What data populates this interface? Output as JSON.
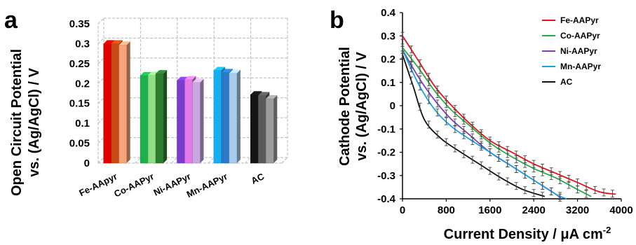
{
  "panels": {
    "a_letter": "a",
    "b_letter": "b"
  },
  "colors": {
    "Fe": [
      "#e00000",
      "#c84a14",
      "#f6a57a"
    ],
    "Co": [
      "#1cb14b",
      "#8fe084",
      "#2e7d2e"
    ],
    "Ni": [
      "#7a3ccf",
      "#e37ae8",
      "#c9a8e2"
    ],
    "Mn": [
      "#16aef0",
      "#2a78c8",
      "#a8ccec"
    ],
    "AC": [
      "#141414",
      "#5a5a5a",
      "#9c9c9c"
    ],
    "series_lines": [
      "#e8101a",
      "#2aa84a",
      "#7b3fb0",
      "#1ca0e0",
      "#111111"
    ]
  },
  "chart_data": [
    {
      "type": "bar",
      "panel": "a",
      "title": "",
      "ylabel_line1": "Open Circuit Potential",
      "ylabel_line2": "vs. (Ag/AgCl) / V",
      "xlabel": "",
      "ylim": [
        0,
        0.35
      ],
      "yticks": [
        "0",
        "0.05",
        "0.1",
        "0.15",
        "0.2",
        "0.25",
        "0.3",
        "0.35"
      ],
      "ytick_values": [
        0,
        0.05,
        0.1,
        0.15,
        0.2,
        0.25,
        0.3,
        0.35
      ],
      "categories": [
        "Fe-AApyr",
        "Co-AAPyr",
        "Ni-AAPyr",
        "Mn-AAPyr",
        "AC"
      ],
      "color_keys": [
        "Fe",
        "Co",
        "Ni",
        "Mn",
        "AC"
      ],
      "values": [
        [
          0.3,
          0.3,
          0.297
        ],
        [
          0.22,
          0.221,
          0.225
        ],
        [
          0.208,
          0.21,
          0.203
        ],
        [
          0.233,
          0.228,
          0.226
        ],
        [
          0.172,
          0.17,
          0.162
        ]
      ],
      "grid": true
    },
    {
      "type": "line",
      "panel": "b",
      "title": "",
      "ylabel_line1": "Cathode Potential",
      "ylabel_line2": "vs. (Ag/AgCl) / V",
      "xlabel": "Current Density / μA cm",
      "xlabel_sup": "-2",
      "xlim": [
        0,
        4000
      ],
      "ylim": [
        -0.4,
        0.4
      ],
      "xticks": [
        "0",
        "800",
        "1600",
        "2400",
        "3200",
        "4000"
      ],
      "xtick_values": [
        0,
        800,
        1600,
        2400,
        3200,
        4000
      ],
      "yticks": [
        "0.4",
        "0.3",
        "0.2",
        "0.1",
        "0",
        "-0.1",
        "-0.2",
        "-0.3",
        "-0.4"
      ],
      "ytick_values": [
        0.4,
        0.3,
        0.2,
        0.1,
        0,
        -0.1,
        -0.2,
        -0.3,
        -0.4
      ],
      "legend_position": "top-right",
      "series": [
        {
          "name": "Fe-AAPyr",
          "x": [
            0,
            300,
            600,
            900,
            1200,
            1600,
            2000,
            2400,
            2800,
            3200,
            3600,
            3900
          ],
          "y": [
            0.3,
            0.19,
            0.08,
            0.0,
            -0.07,
            -0.15,
            -0.2,
            -0.25,
            -0.29,
            -0.33,
            -0.37,
            -0.38
          ]
        },
        {
          "name": "Co-AAPyr",
          "x": [
            0,
            300,
            600,
            900,
            1200,
            1600,
            2000,
            2400,
            2800,
            3200,
            3450
          ],
          "y": [
            0.25,
            0.16,
            0.06,
            -0.02,
            -0.08,
            -0.16,
            -0.22,
            -0.27,
            -0.31,
            -0.36,
            -0.39
          ]
        },
        {
          "name": "Ni-AAPyr",
          "x": [
            0,
            300,
            600,
            900,
            1200,
            1600,
            2000,
            2400,
            2800,
            2900
          ],
          "y": [
            0.24,
            0.12,
            0.02,
            -0.06,
            -0.12,
            -0.2,
            -0.26,
            -0.32,
            -0.38,
            -0.4
          ]
        },
        {
          "name": "Mn-AAPyr",
          "x": [
            0,
            300,
            600,
            900,
            1200,
            1600,
            2000,
            2400,
            2800,
            3000
          ],
          "y": [
            0.24,
            0.09,
            -0.02,
            -0.09,
            -0.14,
            -0.2,
            -0.26,
            -0.32,
            -0.38,
            -0.4
          ]
        },
        {
          "name": "AC",
          "x": [
            0,
            200,
            400,
            700,
            1000,
            1400,
            1800,
            2200,
            2600
          ],
          "y": [
            0.22,
            0.08,
            -0.06,
            -0.14,
            -0.19,
            -0.25,
            -0.31,
            -0.36,
            -0.39
          ]
        }
      ]
    }
  ]
}
